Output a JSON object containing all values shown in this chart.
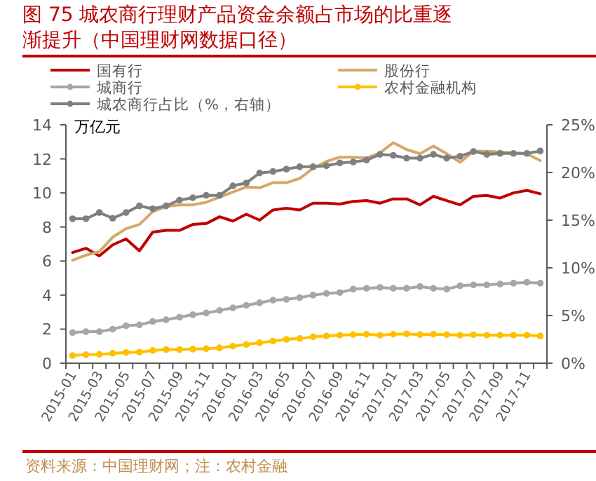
{
  "chart_data": {
    "type": "line",
    "title": "图 75 城农商行理财产品资金余额占市场的比重逐渐提升（中国理财网数据口径）",
    "ylabel": "万亿元",
    "annotations": [
      "资料来源：中国理财网；注：农村金融"
    ],
    "categories": [
      "2015-01",
      null,
      "2015-03",
      null,
      "2015-05",
      null,
      "2015-07",
      null,
      "2015-09",
      null,
      "2015-11",
      null,
      "2016-01",
      null,
      "2016-03",
      null,
      "2016-05",
      null,
      "2016-07",
      null,
      "2016-09",
      null,
      "2016-11",
      null,
      "2017-01",
      null,
      "2017-03",
      null,
      "2017-05",
      null,
      "2017-07",
      null,
      "2017-09",
      null,
      "2017-11",
      null
    ],
    "series": [
      {
        "name": "国有行",
        "color": "#c00000",
        "marker": "none",
        "values": [
          6.5,
          6.75,
          6.3,
          6.95,
          7.3,
          6.6,
          7.7,
          7.8,
          7.8,
          8.15,
          8.2,
          8.6,
          8.35,
          8.75,
          8.4,
          9.0,
          9.1,
          9.0,
          9.4,
          9.4,
          9.35,
          9.5,
          9.55,
          9.4,
          9.65,
          9.65,
          9.3,
          9.8,
          9.55,
          9.3,
          9.8,
          9.85,
          9.7,
          10.0,
          10.15,
          9.95
        ]
      },
      {
        "name": "股份行",
        "color": "#d4a86a",
        "marker": "none",
        "values": [
          6.05,
          6.35,
          6.55,
          7.4,
          7.9,
          8.15,
          8.9,
          9.2,
          9.3,
          9.3,
          9.45,
          9.75,
          10.05,
          10.35,
          10.3,
          10.6,
          10.6,
          10.85,
          11.45,
          11.85,
          12.1,
          12.1,
          12.05,
          12.35,
          12.95,
          12.55,
          12.3,
          12.75,
          12.3,
          11.8,
          12.45,
          12.45,
          12.4,
          12.35,
          12.3,
          11.9
        ]
      },
      {
        "name": "城商行",
        "color": "#a6a6a6",
        "marker": "circle",
        "values": [
          1.8,
          1.85,
          1.85,
          2.0,
          2.2,
          2.25,
          2.45,
          2.55,
          2.7,
          2.85,
          2.95,
          3.1,
          3.25,
          3.4,
          3.55,
          3.7,
          3.75,
          3.85,
          4.0,
          4.1,
          4.15,
          4.35,
          4.4,
          4.45,
          4.4,
          4.4,
          4.5,
          4.4,
          4.35,
          4.55,
          4.6,
          4.6,
          4.65,
          4.7,
          4.75,
          4.7
        ]
      },
      {
        "name": "农村金融机构",
        "color": "#ffc000",
        "marker": "circle",
        "values": [
          0.45,
          0.5,
          0.52,
          0.58,
          0.63,
          0.65,
          0.75,
          0.8,
          0.8,
          0.83,
          0.85,
          0.9,
          1.0,
          1.1,
          1.2,
          1.3,
          1.4,
          1.45,
          1.55,
          1.6,
          1.65,
          1.68,
          1.7,
          1.65,
          1.7,
          1.72,
          1.68,
          1.7,
          1.68,
          1.65,
          1.67,
          1.65,
          1.65,
          1.65,
          1.65,
          1.6
        ]
      },
      {
        "name": "城农商行占比（%，右轴）",
        "color": "#7f7f7f",
        "marker": "circle",
        "axis": "y2",
        "values": [
          15.15,
          15.15,
          15.8,
          15.2,
          15.8,
          16.5,
          16.2,
          16.5,
          17.1,
          17.35,
          17.6,
          17.6,
          18.6,
          18.9,
          19.95,
          20.1,
          20.35,
          20.6,
          20.6,
          20.7,
          21.0,
          21.1,
          21.3,
          21.9,
          21.8,
          21.5,
          21.5,
          21.9,
          21.5,
          21.7,
          22.2,
          21.9,
          22.0,
          22.0,
          22.0,
          22.25
        ]
      }
    ],
    "ylim": [
      0,
      14
    ],
    "yticks": [
      0,
      2,
      4,
      6,
      8,
      10,
      12,
      14
    ],
    "y2lim": [
      0,
      25
    ],
    "y2ticks": [
      {
        "value": 0,
        "label": "0%"
      },
      {
        "value": 5,
        "label": "5%"
      },
      {
        "value": 10,
        "label": "10%"
      },
      {
        "value": 15,
        "label": "15%"
      },
      {
        "value": 20,
        "label": "20%"
      },
      {
        "value": 25,
        "label": "25%"
      }
    ],
    "grid": false,
    "legend": "top"
  }
}
